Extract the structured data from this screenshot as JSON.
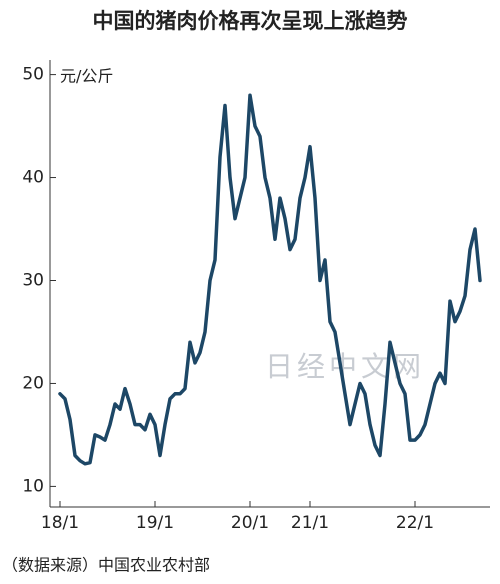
{
  "chart_data": {
    "type": "line",
    "title": "中国的猪肉价格再次呈现上涨趋势",
    "y_unit": "元/公斤",
    "source": "（数据来源）中国农业农村部",
    "watermark": "日经中文网",
    "x": [
      0,
      1,
      2,
      3,
      4,
      5,
      6,
      7,
      8,
      9,
      10,
      11,
      12,
      13,
      14,
      15,
      16,
      17,
      18,
      19,
      20,
      21,
      22,
      23,
      24,
      25,
      26,
      27,
      28,
      29,
      30,
      31,
      32,
      33,
      34,
      35,
      36,
      37,
      38,
      39,
      40,
      41,
      42,
      43,
      44,
      45,
      46,
      47,
      48,
      49,
      50,
      51,
      52,
      53,
      54,
      55,
      56,
      57,
      58,
      59,
      60,
      61,
      62,
      63,
      64,
      65,
      66,
      67,
      68,
      69,
      70,
      71,
      72,
      73,
      74,
      75,
      76,
      77,
      78,
      79,
      80,
      81,
      82,
      83,
      84
    ],
    "series": [
      {
        "name": "猪肉价格",
        "color": "#1d4766",
        "values": [
          19,
          18.5,
          16.5,
          13,
          12.5,
          12.2,
          12.3,
          15,
          14.8,
          14.5,
          16,
          18,
          17.5,
          19.5,
          18,
          16,
          16,
          15.5,
          17,
          16,
          13,
          16,
          18.5,
          19,
          19,
          19.5,
          24,
          22,
          23,
          25,
          30,
          32,
          42,
          47,
          40,
          36,
          38,
          40,
          48,
          45,
          44,
          40,
          38,
          34,
          38,
          36,
          33,
          34,
          38,
          40,
          43,
          38,
          30,
          32,
          26,
          25,
          22,
          19,
          16,
          18,
          20,
          19,
          16,
          14,
          13,
          18,
          24,
          22,
          20,
          19,
          14.5,
          14.5,
          15,
          16,
          18,
          20,
          21,
          20,
          28,
          26,
          27,
          28.5,
          33,
          35,
          30
        ]
      }
    ],
    "xlim": [
      -2,
      86
    ],
    "xticks": [
      {
        "value": 0,
        "label": "18/1"
      },
      {
        "value": 19,
        "label": "19/1"
      },
      {
        "value": 38,
        "label": "20/1"
      },
      {
        "value": 50,
        "label": "21/1"
      },
      {
        "value": 71,
        "label": "22/1"
      }
    ],
    "ylim": [
      8,
      52
    ],
    "yticks": [
      10,
      20,
      30,
      40,
      50
    ]
  }
}
